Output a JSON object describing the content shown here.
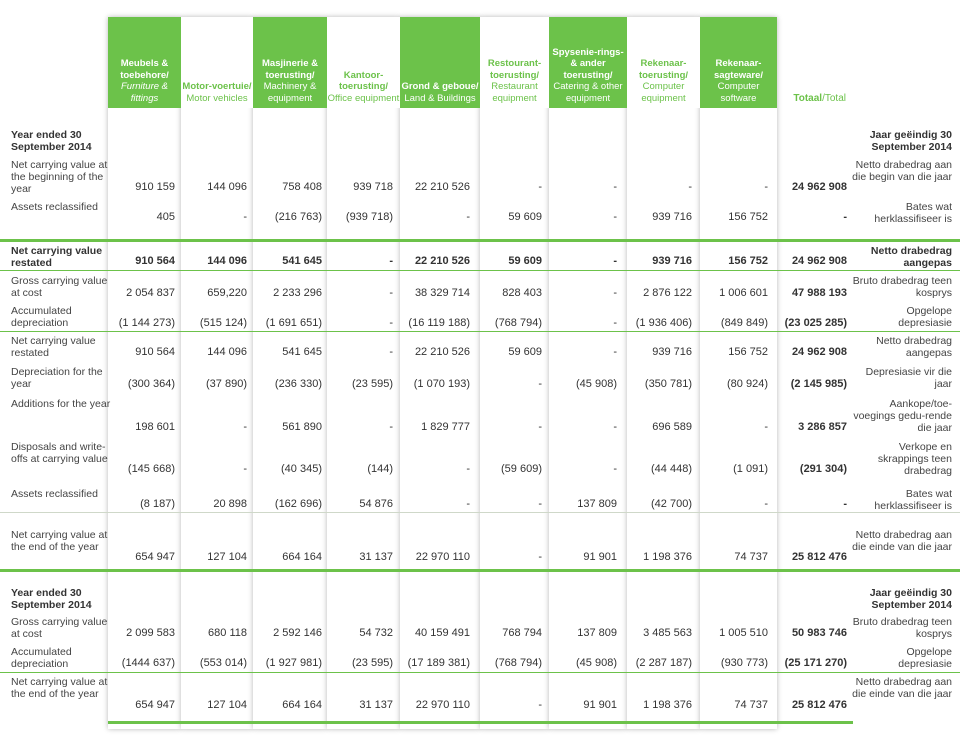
{
  "columns": [
    {
      "af": "Meubels & toebehore/",
      "en": "Furniture & fittings",
      "style": "dark"
    },
    {
      "af": "Motor-voertuie/",
      "en": "Motor vehicles",
      "style": "light"
    },
    {
      "af": "Masjinerie & toerusting/",
      "en": "Machinery & equipment",
      "style": "dark"
    },
    {
      "af": "Kantoor-toerusting/",
      "en": "Office equipment",
      "style": "light"
    },
    {
      "af": "Grond & geboue/",
      "en": "Land & Buildings",
      "style": "dark"
    },
    {
      "af": "Restourant-toerusting/",
      "en": "Restaurant equipment",
      "style": "light"
    },
    {
      "af": "Spysenie-rings- & ander toerusting/",
      "en": "Catering & other equipment",
      "style": "dark"
    },
    {
      "af": "Rekenaar-toerusting/",
      "en": "Computer equipment",
      "style": "light"
    },
    {
      "af": "Rekenaar-sagteware/",
      "en": "Computer software",
      "style": "dark"
    }
  ],
  "total_header": {
    "af": "Totaal",
    "sep": "/",
    "en": "Total"
  },
  "accent_color": "#6cc24a",
  "rows": [
    {
      "label": "Year ended 30 September 2014",
      "right": "Jaar geëindig 30 September 2014",
      "bold": true,
      "heading": true,
      "values": []
    },
    {
      "label": "Net carrying value at the beginning of the year",
      "right": "Netto drabedrag aan die begin van die jaar",
      "values": [
        "910 159",
        "144 096",
        "758 408",
        "939 718",
        "22 210 526",
        "-",
        "-",
        "-",
        "-",
        "24 962 908"
      ]
    },
    {
      "label": "Assets reclassified",
      "right": "Bates wat herklassifiseer is",
      "values": [
        "405",
        "-",
        "(216 763)",
        "(939 718)",
        "-",
        "59 609",
        "-",
        "939 716",
        "156 752",
        "-"
      ]
    },
    {
      "label": "Net carrying value restated",
      "right": "Netto drabedrag aangepas",
      "bold": true,
      "values": [
        "910 564",
        "144 096",
        "541 645",
        "-",
        "22 210 526",
        "59 609",
        "-",
        "939 716",
        "156 752",
        "24 962 908"
      ]
    },
    {
      "label": "Gross carrying value at cost",
      "right": "Bruto drabedrag teen kosprys",
      "values": [
        "2 054 837",
        "659,220",
        "2 233 296",
        "-",
        "38 329 714",
        "828 403",
        "-",
        "2 876 122",
        "1 006 601",
        "47 988 193"
      ]
    },
    {
      "label": "Accumulated depreciation",
      "right": "Opgelope depresiasie",
      "values": [
        "(1 144 273)",
        "(515 124)",
        "(1 691 651)",
        "-",
        "(16 119 188)",
        "(768 794)",
        "-",
        "(1 936 406)",
        "(849 849)",
        "(23 025 285)"
      ]
    },
    {
      "label": "Net carrying value restated",
      "right": "Netto drabedrag aangepas",
      "values": [
        "910 564",
        "144 096",
        "541 645",
        "-",
        "22 210 526",
        "59 609",
        "-",
        "939 716",
        "156 752",
        "24 962 908"
      ]
    },
    {
      "label": "Depreciation for the year",
      "right": "Depresiasie vir die jaar",
      "values": [
        "(300 364)",
        "(37 890)",
        "(236 330)",
        "(23 595)",
        "(1 070 193)",
        "-",
        "(45 908)",
        "(350 781)",
        "(80 924)",
        "(2 145 985)"
      ]
    },
    {
      "label": "Additions for the year",
      "right": "Aankope/toe-voegings gedu-rende die jaar",
      "values": [
        "198 601",
        "-",
        "561 890",
        "-",
        "1 829 777",
        "-",
        "-",
        "696 589",
        "-",
        "3 286 857"
      ]
    },
    {
      "label": "Disposals and write-offs at carrying value",
      "right": "Verkope en skrappings teen drabedrag",
      "values": [
        "(145 668)",
        "-",
        "(40 345)",
        "(144)",
        "-",
        "(59 609)",
        "-",
        "(44 448)",
        "(1 091)",
        "(291 304)"
      ]
    },
    {
      "label": "Assets reclassified",
      "right": "Bates wat herklassifiseer is",
      "values": [
        "(8 187)",
        "20 898",
        "(162 696)",
        "54 876",
        "-",
        "-",
        "137 809",
        "(42 700)",
        "-",
        "-"
      ]
    },
    {
      "label": "Net carrying value at the end of the year",
      "right": "Netto drabedrag aan die einde van die jaar",
      "values": [
        "654 947",
        "127 104",
        "664 164",
        "31 137",
        "22 970 110",
        "-",
        "91 901",
        "1 198 376",
        "74 737",
        "25 812 476"
      ]
    },
    {
      "label": "Year ended 30 September 2014",
      "right": "Jaar geëindig 30 September 2014",
      "bold": true,
      "heading": true,
      "values": []
    },
    {
      "label": "Gross carrying value at cost",
      "right": "Bruto drabedrag teen kosprys",
      "values": [
        "2 099 583",
        "680 118",
        "2 592 146",
        "54 732",
        "40 159 491",
        "768 794",
        "137 809",
        "3 485 563",
        "1 005 510",
        "50 983 746"
      ]
    },
    {
      "label": "Accumulated depreciation",
      "right": "Opgelope depresiasie",
      "values": [
        "(1444 637)",
        "(553 014)",
        "(1 927 981)",
        "(23 595)",
        "(17 189 381)",
        "(768 794)",
        "(45 908)",
        "(2 287 187)",
        "(930 773)",
        "(25 171 270)"
      ]
    },
    {
      "label": "Net carrying value at the end of the year",
      "right": "Netto drabedrag aan die einde van die jaar",
      "values": [
        "654 947",
        "127 104",
        "664 164",
        "31 137",
        "22 970 110",
        "-",
        "91 901",
        "1 198 376",
        "74 737",
        "25 812 476"
      ]
    }
  ]
}
